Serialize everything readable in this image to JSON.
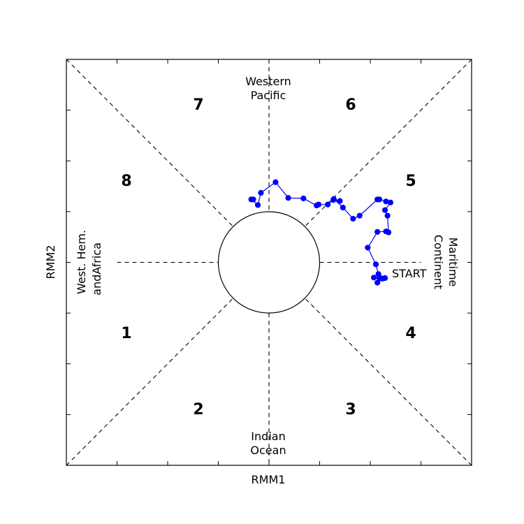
{
  "chart_data": {
    "type": "scatter",
    "xlabel": "RMM1",
    "ylabel": "RMM2",
    "xlim": [
      -4,
      4
    ],
    "ylim": [
      -4,
      4
    ],
    "grid": false,
    "unit_circle_radius": 1,
    "phases": [
      "1",
      "2",
      "3",
      "4",
      "5",
      "6",
      "7",
      "8"
    ],
    "regions": {
      "top": [
        "Western",
        "Pacific"
      ],
      "bottom": [
        "Indian",
        "Ocean"
      ],
      "left": [
        "West. Hem.",
        "andAfrica"
      ],
      "right": [
        "Maritime",
        "Continent"
      ]
    },
    "start_label": "START",
    "series": [
      {
        "color": "#0000ff",
        "x": [
          2.18,
          2.07,
          2.24,
          2.14,
          2.29,
          2.16,
          2.11,
          1.95,
          2.14,
          2.31,
          2.36,
          2.34,
          2.29,
          2.4,
          2.31,
          2.18,
          2.14,
          1.79,
          1.66,
          1.46,
          1.28,
          1.4,
          1.27,
          1.16,
          0.98,
          0.94,
          0.68,
          0.38,
          0.13,
          -0.16,
          -0.22,
          -0.35,
          -0.31
        ],
        "y": [
          -0.31,
          -0.3,
          -0.32,
          -0.4,
          -0.31,
          -0.23,
          -0.04,
          0.29,
          0.6,
          0.61,
          0.59,
          0.92,
          1.03,
          1.18,
          1.2,
          1.24,
          1.24,
          0.92,
          0.86,
          1.08,
          1.25,
          1.21,
          1.23,
          1.14,
          1.14,
          1.12,
          1.26,
          1.27,
          1.58,
          1.37,
          1.13,
          1.24,
          1.24
        ]
      }
    ]
  }
}
